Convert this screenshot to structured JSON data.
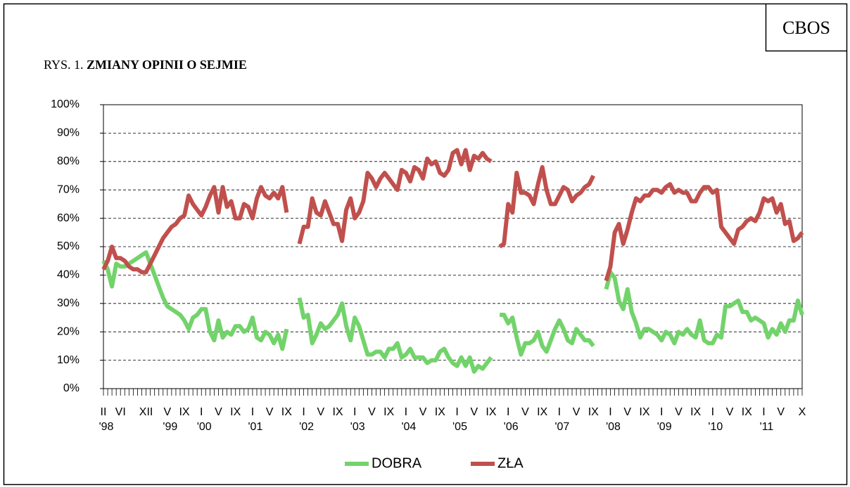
{
  "source": "CBOS",
  "chart_data": {
    "type": "line",
    "title_prefix": "RYS. 1.",
    "title": "ZMIANY OPINII O SEJMIE",
    "categories": [
      "II",
      null,
      null,
      null,
      "VI",
      null,
      null,
      null,
      null,
      null,
      "XII",
      null,
      null,
      null,
      null,
      "V",
      null,
      null,
      null,
      "IX",
      null,
      null,
      null,
      "I",
      null,
      null,
      null,
      "V",
      null,
      null,
      null,
      "IX",
      null,
      null,
      null,
      "I",
      null,
      null,
      null,
      "V",
      null,
      null,
      null,
      "IX",
      null,
      null,
      null,
      "I",
      null,
      null,
      null,
      "V",
      null,
      null,
      null,
      "IX",
      null,
      null,
      null,
      "I",
      null,
      null,
      null,
      "V",
      null,
      null,
      null,
      "IX",
      null,
      null,
      null,
      "I",
      null,
      null,
      null,
      "V",
      null,
      null,
      null,
      "IX",
      null,
      null,
      null,
      "I",
      null,
      null,
      null,
      "V",
      null,
      null,
      null,
      "IX",
      null,
      null,
      null,
      "I",
      null,
      null,
      null,
      "V",
      null,
      null,
      null,
      "IX",
      null,
      null,
      null,
      "I",
      null,
      null,
      null,
      "V",
      null,
      null,
      null,
      "IX",
      null,
      null,
      null,
      "I",
      null,
      null,
      null,
      "V",
      null,
      null,
      null,
      "IX",
      null,
      null,
      null,
      "I",
      null,
      null,
      null,
      "V",
      null,
      null,
      null,
      "IX",
      null,
      null,
      null,
      "I",
      null,
      null,
      null,
      "V",
      null,
      null,
      null,
      "IX",
      null,
      null,
      null,
      "I",
      null,
      null,
      null,
      "V",
      null,
      null,
      null,
      null,
      "X"
    ],
    "year_labels": [
      "'98",
      null,
      null,
      null,
      null,
      null,
      null,
      null,
      null,
      null,
      null,
      null,
      null,
      null,
      null,
      "'99",
      null,
      null,
      null,
      null,
      null,
      null,
      null,
      "'00",
      null,
      null,
      null,
      null,
      null,
      null,
      null,
      null,
      null,
      null,
      null,
      "'01",
      null,
      null,
      null,
      null,
      null,
      null,
      null,
      null,
      null,
      null,
      null,
      "'02",
      null,
      null,
      null,
      null,
      null,
      null,
      null,
      null,
      null,
      null,
      null,
      "'03",
      null,
      null,
      null,
      null,
      null,
      null,
      null,
      null,
      null,
      null,
      null,
      "'04",
      null,
      null,
      null,
      null,
      null,
      null,
      null,
      null,
      null,
      null,
      null,
      "'05",
      null,
      null,
      null,
      null,
      null,
      null,
      null,
      null,
      null,
      null,
      null,
      "'06",
      null,
      null,
      null,
      null,
      null,
      null,
      null,
      null,
      null,
      null,
      null,
      "'07",
      null,
      null,
      null,
      null,
      null,
      null,
      null,
      null,
      null,
      null,
      null,
      "'08",
      null,
      null,
      null,
      null,
      null,
      null,
      null,
      null,
      null,
      null,
      null,
      "'09",
      null,
      null,
      null,
      null,
      null,
      null,
      null,
      null,
      null,
      null,
      null,
      "'10",
      null,
      null,
      null,
      null,
      null,
      null,
      null,
      null,
      null,
      null,
      null,
      "'11",
      null,
      null,
      null,
      null,
      null,
      null,
      null,
      null,
      null
    ],
    "series": [
      {
        "name": "DOBRA",
        "color": "#73d36b",
        "values": [
          45,
          42,
          36,
          44,
          43,
          43,
          44,
          45,
          46,
          47,
          48,
          44,
          40,
          36,
          32,
          29,
          28,
          27,
          26,
          24,
          21,
          25,
          26,
          28,
          28,
          20,
          17,
          24,
          18,
          20,
          19,
          22,
          22,
          20,
          21,
          25,
          18,
          17,
          20,
          19,
          16,
          19,
          14,
          21,
          null,
          null,
          32,
          25,
          26,
          16,
          19,
          23,
          21,
          22,
          24,
          26,
          30,
          22,
          17,
          25,
          22,
          17,
          12,
          12,
          13,
          13,
          11,
          14,
          14,
          16,
          11,
          12,
          14,
          11,
          11,
          11,
          9,
          10,
          10,
          13,
          14,
          11,
          9,
          8,
          11,
          8,
          11,
          6,
          8,
          7,
          9,
          11,
          null,
          26,
          26,
          23,
          25,
          18,
          12,
          16,
          16,
          17,
          20,
          15,
          13,
          17,
          21,
          24,
          21,
          17,
          16,
          21,
          19,
          17,
          17,
          15,
          null,
          null,
          35,
          41,
          39,
          31,
          28,
          35,
          27,
          23,
          18,
          21,
          21,
          20,
          19,
          17,
          20,
          19,
          16,
          20,
          19,
          21,
          19,
          18,
          24,
          17,
          16,
          16,
          19,
          18,
          29,
          29,
          30,
          31,
          27,
          27,
          24,
          25,
          24,
          23,
          18,
          21,
          19,
          23,
          20,
          24,
          24,
          31,
          26
        ]
      },
      {
        "name": "ZŁA",
        "color": "#c0504d",
        "values": [
          42,
          45,
          50,
          46,
          46,
          45,
          43,
          42,
          42,
          41,
          41,
          44,
          47,
          50,
          53,
          55,
          57,
          58,
          60,
          61,
          68,
          65,
          63,
          61,
          64,
          68,
          71,
          62,
          71,
          64,
          66,
          60,
          60,
          65,
          64,
          60,
          67,
          71,
          68,
          67,
          69,
          67,
          71,
          62,
          null,
          null,
          51,
          57,
          57,
          67,
          62,
          61,
          66,
          62,
          58,
          58,
          52,
          63,
          67,
          60,
          62,
          66,
          76,
          74,
          71,
          74,
          76,
          74,
          72,
          70,
          77,
          76,
          73,
          78,
          77,
          74,
          81,
          79,
          80,
          76,
          75,
          77,
          83,
          84,
          79,
          84,
          77,
          82,
          81,
          83,
          81,
          80,
          null,
          50,
          51,
          65,
          62,
          76,
          69,
          69,
          68,
          65,
          72,
          78,
          70,
          65,
          65,
          68,
          71,
          70,
          66,
          68,
          69,
          71,
          72,
          75,
          null,
          null,
          38,
          43,
          55,
          58,
          51,
          56,
          62,
          67,
          66,
          68,
          68,
          70,
          70,
          69,
          71,
          72,
          69,
          70,
          69,
          69,
          66,
          66,
          69,
          71,
          71,
          69,
          70,
          57,
          55,
          53,
          51,
          56,
          57,
          59,
          60,
          59,
          62,
          67,
          66,
          67,
          62,
          65,
          58,
          59,
          52,
          53,
          55
        ]
      }
    ],
    "ylim": [
      0,
      100
    ],
    "yticks": [
      {
        "value": 0,
        "label": "0%"
      },
      {
        "value": 10,
        "label": "10%"
      },
      {
        "value": 20,
        "label": "20%"
      },
      {
        "value": 30,
        "label": "30%"
      },
      {
        "value": 40,
        "label": "40%"
      },
      {
        "value": 50,
        "label": "50%"
      },
      {
        "value": 60,
        "label": "60%"
      },
      {
        "value": 70,
        "label": "70%"
      },
      {
        "value": 80,
        "label": "80%"
      },
      {
        "value": 90,
        "label": "90%"
      },
      {
        "value": 100,
        "label": "100%"
      }
    ],
    "grid": true,
    "legend": "bottom"
  }
}
